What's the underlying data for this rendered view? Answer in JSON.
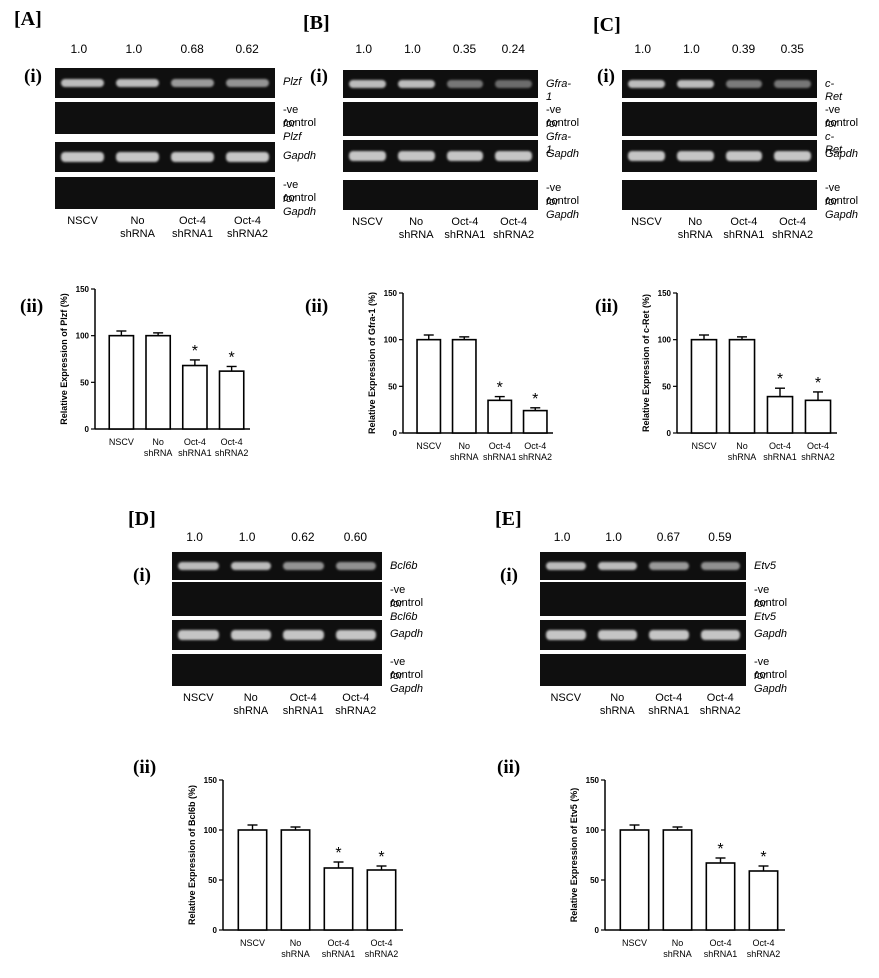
{
  "panels": [
    {
      "id": "A",
      "label": "[A]",
      "gene": "Plzf",
      "sub_i": "(i)",
      "sub_ii": "(ii)",
      "ratios": [
        "1.0",
        "1.0",
        "0.68",
        "0.62"
      ],
      "gel_labels": {
        "gene": "Plzf",
        "neg_gene_line1": "-ve control",
        "neg_gene_line2": "for Plzf",
        "gapdh": "Gapdh",
        "neg_gapdh_line1": "-ve control",
        "neg_gapdh_line2": "for Gapdh"
      },
      "lanes": [
        [
          "NSCV",
          ""
        ],
        [
          "No",
          "shRNA"
        ],
        [
          "Oct-4",
          "shRNA1"
        ],
        [
          "Oct-4",
          "shRNA2"
        ]
      ],
      "ylabel": "Relative Expression of Plzf (%)"
    },
    {
      "id": "B",
      "label": "[B]",
      "gene": "Gfra-1",
      "sub_i": "(i)",
      "sub_ii": "(ii)",
      "ratios": [
        "1.0",
        "1.0",
        "0.35",
        "0.24"
      ],
      "gel_labels": {
        "gene": "Gfra-1",
        "neg_gene_line1": "-ve control",
        "neg_gene_line2": "for Gfra-1",
        "gapdh": "Gapdh",
        "neg_gapdh_line1": "-ve control",
        "neg_gapdh_line2": "for Gapdh"
      },
      "lanes": [
        [
          "NSCV",
          ""
        ],
        [
          "No",
          "shRNA"
        ],
        [
          "Oct-4",
          "shRNA1"
        ],
        [
          "Oct-4",
          "shRNA2"
        ]
      ],
      "ylabel": "Relative Expression of Gfra-1 (%)"
    },
    {
      "id": "C",
      "label": "[C]",
      "gene": "c-Ret",
      "sub_i": "(i)",
      "sub_ii": "(ii)",
      "ratios": [
        "1.0",
        "1.0",
        "0.39",
        "0.35"
      ],
      "gel_labels": {
        "gene": "c-Ret",
        "neg_gene_line1": "-ve control",
        "neg_gene_line2": "for c-Ret",
        "gapdh": "Gapdh",
        "neg_gapdh_line1": "-ve control",
        "neg_gapdh_line2": "for Gapdh"
      },
      "lanes": [
        [
          "NSCV",
          ""
        ],
        [
          "No",
          "shRNA"
        ],
        [
          "Oct-4",
          "shRNA1"
        ],
        [
          "Oct-4",
          "shRNA2"
        ]
      ],
      "ylabel": "Relative Expression of c-Ret (%)"
    },
    {
      "id": "D",
      "label": "[D]",
      "gene": "Bcl6b",
      "sub_i": "(i)",
      "sub_ii": "(ii)",
      "ratios": [
        "1.0",
        "1.0",
        "0.62",
        "0.60"
      ],
      "gel_labels": {
        "gene": "Bcl6b",
        "neg_gene_line1": "-ve control",
        "neg_gene_line2": "for Bcl6b",
        "gapdh": "Gapdh",
        "neg_gapdh_line1": "-ve control",
        "neg_gapdh_line2": "for Gapdh"
      },
      "lanes": [
        [
          "NSCV",
          ""
        ],
        [
          "No",
          "shRNA"
        ],
        [
          "Oct-4",
          "shRNA1"
        ],
        [
          "Oct-4",
          "shRNA2"
        ]
      ],
      "ylabel": "Relative Expression of Bcl6b (%)"
    },
    {
      "id": "E",
      "label": "[E]",
      "gene": "Etv5",
      "sub_i": "(i)",
      "sub_ii": "(ii)",
      "ratios": [
        "1.0",
        "1.0",
        "0.67",
        "0.59"
      ],
      "gel_labels": {
        "gene": "Etv5",
        "neg_gene_line1": "-ve control",
        "neg_gene_line2": "for Etv5",
        "gapdh": "Gapdh",
        "neg_gapdh_line1": "-ve control",
        "neg_gapdh_line2": "for Gapdh"
      },
      "lanes": [
        [
          "NSCV",
          ""
        ],
        [
          "No",
          "shRNA"
        ],
        [
          "Oct-4",
          "shRNA1"
        ],
        [
          "Oct-4",
          "shRNA2"
        ]
      ],
      "ylabel": "Relative Expression of Etv5 (%)"
    }
  ],
  "chart_data": [
    {
      "type": "bar",
      "panel": "A",
      "categories": [
        "NSCV",
        "No shRNA",
        "Oct-4 shRNA1",
        "Oct-4 shRNA2"
      ],
      "values": [
        100,
        100,
        68,
        62
      ],
      "errors": [
        5,
        3,
        6,
        5
      ],
      "significant": [
        false,
        false,
        true,
        true
      ],
      "ylabel": "Relative Expression of Plzf (%)",
      "ylim": [
        0,
        150
      ],
      "yticks": [
        0,
        50,
        100,
        150
      ]
    },
    {
      "type": "bar",
      "panel": "B",
      "categories": [
        "NSCV",
        "No shRNA",
        "Oct-4 shRNA1",
        "Oct-4 shRNA2"
      ],
      "values": [
        100,
        100,
        35,
        24
      ],
      "errors": [
        5,
        3,
        4,
        3
      ],
      "significant": [
        false,
        false,
        true,
        true
      ],
      "ylabel": "Relative Expression of Gfra-1 (%)",
      "ylim": [
        0,
        150
      ],
      "yticks": [
        0,
        50,
        100,
        150
      ]
    },
    {
      "type": "bar",
      "panel": "C",
      "categories": [
        "NSCV",
        "No shRNA",
        "Oct-4 shRNA1",
        "Oct-4 shRNA2"
      ],
      "values": [
        100,
        100,
        39,
        35
      ],
      "errors": [
        5,
        3,
        9,
        9
      ],
      "significant": [
        false,
        false,
        true,
        true
      ],
      "ylabel": "Relative Expression of c-Ret (%)",
      "ylim": [
        0,
        150
      ],
      "yticks": [
        0,
        50,
        100,
        150
      ]
    },
    {
      "type": "bar",
      "panel": "D",
      "categories": [
        "NSCV",
        "No shRNA",
        "Oct-4 shRNA1",
        "Oct-4 shRNA2"
      ],
      "values": [
        100,
        100,
        62,
        60
      ],
      "errors": [
        5,
        3,
        6,
        4
      ],
      "significant": [
        false,
        false,
        true,
        true
      ],
      "ylabel": "Relative Expression of Bcl6b (%)",
      "ylim": [
        0,
        150
      ],
      "yticks": [
        0,
        50,
        100,
        150
      ]
    },
    {
      "type": "bar",
      "panel": "E",
      "categories": [
        "NSCV",
        "No shRNA",
        "Oct-4 shRNA1",
        "Oct-4 shRNA2"
      ],
      "values": [
        100,
        100,
        67,
        59
      ],
      "errors": [
        5,
        3,
        5,
        5
      ],
      "significant": [
        false,
        false,
        true,
        true
      ],
      "ylabel": "Relative Expression of Etv5 (%)",
      "ylim": [
        0,
        150
      ],
      "yticks": [
        0,
        50,
        100,
        150
      ]
    }
  ],
  "colors": {
    "bar_fill": "#ffffff",
    "bar_stroke": "#000000",
    "gel_bg": "#0f0f0f",
    "band": "#cfcfcf"
  }
}
